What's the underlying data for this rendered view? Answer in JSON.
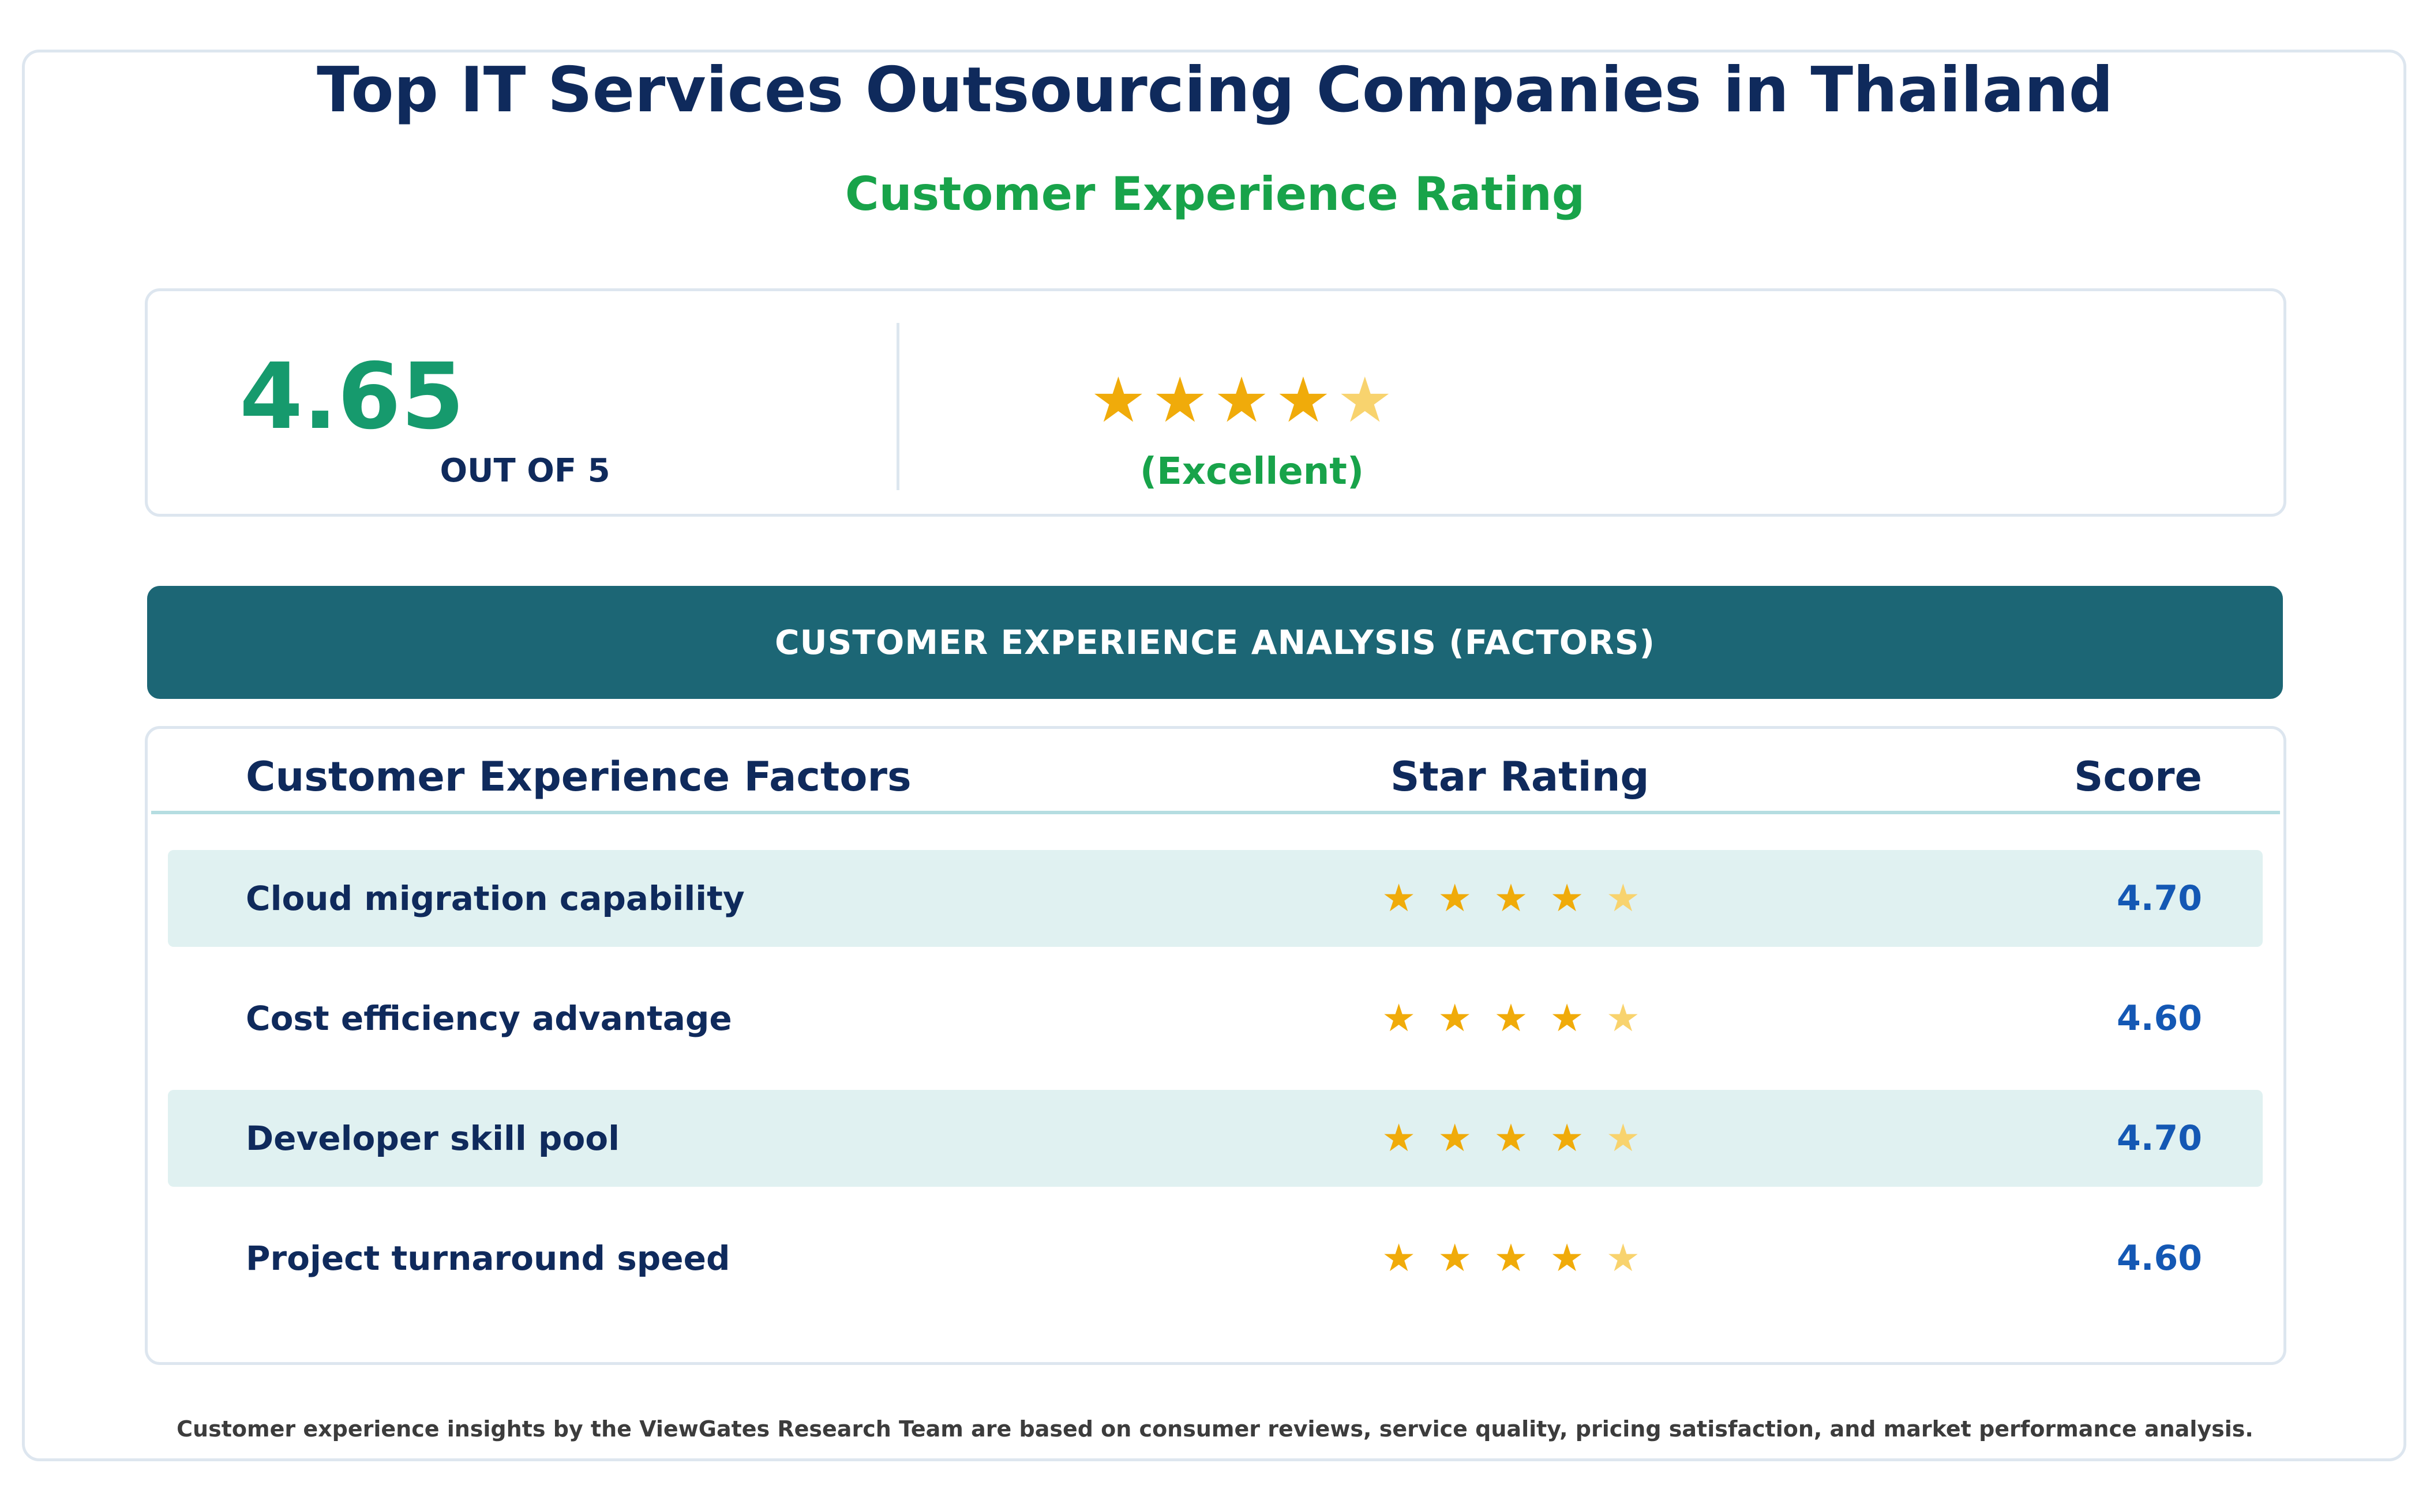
{
  "header": {
    "title": "Top IT Services Outsourcing Companies in Thailand",
    "subtitle": "Customer Experience Rating"
  },
  "summary": {
    "score": "4.65",
    "out_of": "OUT OF 5",
    "stars": 4.5,
    "rating_word": "(Excellent)"
  },
  "banner": {
    "label": "CUSTOMER EXPERIENCE ANALYSIS (FACTORS)"
  },
  "table": {
    "columns": [
      "Customer Experience Factors",
      "Star Rating",
      "Score"
    ],
    "rows": [
      {
        "factor": "Cloud migration capability",
        "stars": 4.5,
        "score": "4.70"
      },
      {
        "factor": "Cost efficiency advantage",
        "stars": 4.5,
        "score": "4.60"
      },
      {
        "factor": "Developer skill pool",
        "stars": 4.5,
        "score": "4.70"
      },
      {
        "factor": "Project turnaround speed",
        "stars": 4.5,
        "score": "4.60"
      }
    ]
  },
  "footer": {
    "note": "Customer experience insights by the ViewGates Research Team are based on consumer reviews, service quality, pricing satisfaction, and market performance analysis."
  },
  "colors": {
    "title": "#0f2a5c",
    "accent_green": "#18a34a",
    "score_green": "#169a6d",
    "banner": "#1c6675",
    "star_full": "#f0ab0a",
    "star_partial": "#f8d36e",
    "score_blue": "#1458b4",
    "row_shade": "#e0f1f1"
  },
  "icons": {
    "star": "star-icon"
  }
}
